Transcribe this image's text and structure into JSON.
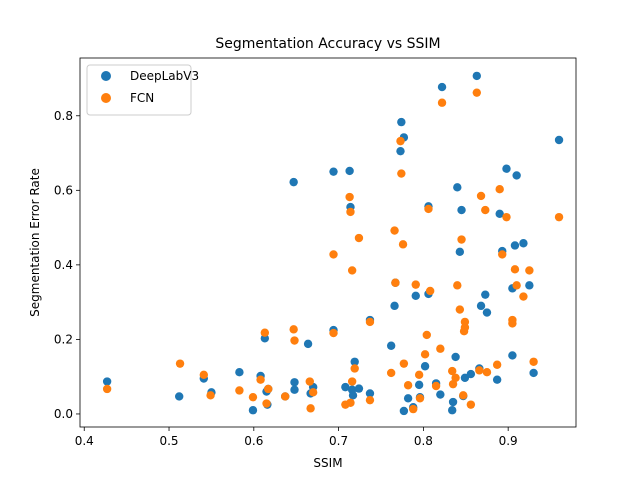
{
  "chart_data": {
    "type": "scatter",
    "title": "Segmentation Accuracy vs SSIM",
    "xlabel": "SSIM",
    "ylabel": "Segmentation Error Rate",
    "xlim": [
      0.395,
      0.98
    ],
    "ylim": [
      -0.035,
      0.955
    ],
    "xticks": [
      0.4,
      0.5,
      0.6,
      0.7,
      0.8,
      0.9
    ],
    "xtick_labels": [
      "0.4",
      "0.5",
      "0.6",
      "0.7",
      "0.8",
      "0.9"
    ],
    "yticks": [
      0.0,
      0.2,
      0.4,
      0.6,
      0.8
    ],
    "ytick_labels": [
      "0.0",
      "0.2",
      "0.4",
      "0.6",
      "0.8"
    ],
    "grid": false,
    "legend_position": "top-left",
    "series": [
      {
        "name": "DeepLabV3",
        "color": "#1f77b4",
        "points": [
          [
            0.427,
            0.087
          ],
          [
            0.512,
            0.047
          ],
          [
            0.541,
            0.095
          ],
          [
            0.55,
            0.058
          ],
          [
            0.583,
            0.112
          ],
          [
            0.599,
            0.01
          ],
          [
            0.608,
            0.102
          ],
          [
            0.613,
            0.203
          ],
          [
            0.615,
            0.06
          ],
          [
            0.617,
            0.067
          ],
          [
            0.616,
            0.025
          ],
          [
            0.637,
            0.047
          ],
          [
            0.647,
            0.622
          ],
          [
            0.648,
            0.085
          ],
          [
            0.648,
            0.065
          ],
          [
            0.664,
            0.188
          ],
          [
            0.667,
            0.055
          ],
          [
            0.67,
            0.072
          ],
          [
            0.694,
            0.65
          ],
          [
            0.694,
            0.225
          ],
          [
            0.708,
            0.072
          ],
          [
            0.713,
            0.652
          ],
          [
            0.714,
            0.555
          ],
          [
            0.716,
            0.065
          ],
          [
            0.717,
            0.05
          ],
          [
            0.719,
            0.14
          ],
          [
            0.724,
            0.068
          ],
          [
            0.737,
            0.055
          ],
          [
            0.737,
            0.252
          ],
          [
            0.762,
            0.183
          ],
          [
            0.766,
            0.29
          ],
          [
            0.767,
            0.352
          ],
          [
            0.773,
            0.705
          ],
          [
            0.774,
            0.783
          ],
          [
            0.777,
            0.742
          ],
          [
            0.777,
            0.008
          ],
          [
            0.782,
            0.042
          ],
          [
            0.788,
            0.018
          ],
          [
            0.791,
            0.317
          ],
          [
            0.795,
            0.078
          ],
          [
            0.796,
            0.045
          ],
          [
            0.802,
            0.128
          ],
          [
            0.806,
            0.557
          ],
          [
            0.806,
            0.322
          ],
          [
            0.815,
            0.082
          ],
          [
            0.82,
            0.052
          ],
          [
            0.822,
            0.877
          ],
          [
            0.834,
            0.01
          ],
          [
            0.835,
            0.032
          ],
          [
            0.838,
            0.153
          ],
          [
            0.84,
            0.608
          ],
          [
            0.843,
            0.435
          ],
          [
            0.845,
            0.547
          ],
          [
            0.847,
            0.048
          ],
          [
            0.849,
            0.097
          ],
          [
            0.856,
            0.107
          ],
          [
            0.863,
            0.907
          ],
          [
            0.866,
            0.122
          ],
          [
            0.868,
            0.29
          ],
          [
            0.873,
            0.32
          ],
          [
            0.875,
            0.272
          ],
          [
            0.887,
            0.092
          ],
          [
            0.89,
            0.537
          ],
          [
            0.893,
            0.437
          ],
          [
            0.898,
            0.658
          ],
          [
            0.905,
            0.337
          ],
          [
            0.905,
            0.157
          ],
          [
            0.908,
            0.452
          ],
          [
            0.91,
            0.64
          ],
          [
            0.918,
            0.458
          ],
          [
            0.925,
            0.345
          ],
          [
            0.93,
            0.11
          ],
          [
            0.96,
            0.735
          ]
        ]
      },
      {
        "name": "FCN",
        "color": "#ff7f0e",
        "points": [
          [
            0.427,
            0.067
          ],
          [
            0.513,
            0.135
          ],
          [
            0.541,
            0.105
          ],
          [
            0.549,
            0.05
          ],
          [
            0.583,
            0.063
          ],
          [
            0.599,
            0.045
          ],
          [
            0.608,
            0.092
          ],
          [
            0.613,
            0.218
          ],
          [
            0.615,
            0.028
          ],
          [
            0.617,
            0.067
          ],
          [
            0.637,
            0.047
          ],
          [
            0.647,
            0.227
          ],
          [
            0.648,
            0.197
          ],
          [
            0.666,
            0.087
          ],
          [
            0.667,
            0.015
          ],
          [
            0.67,
            0.058
          ],
          [
            0.694,
            0.428
          ],
          [
            0.694,
            0.217
          ],
          [
            0.708,
            0.025
          ],
          [
            0.713,
            0.582
          ],
          [
            0.714,
            0.542
          ],
          [
            0.716,
            0.385
          ],
          [
            0.716,
            0.087
          ],
          [
            0.714,
            0.03
          ],
          [
            0.719,
            0.122
          ],
          [
            0.724,
            0.472
          ],
          [
            0.737,
            0.247
          ],
          [
            0.737,
            0.037
          ],
          [
            0.762,
            0.11
          ],
          [
            0.766,
            0.492
          ],
          [
            0.767,
            0.352
          ],
          [
            0.773,
            0.732
          ],
          [
            0.774,
            0.645
          ],
          [
            0.777,
            0.135
          ],
          [
            0.776,
            0.455
          ],
          [
            0.782,
            0.077
          ],
          [
            0.788,
            0.013
          ],
          [
            0.791,
            0.347
          ],
          [
            0.795,
            0.105
          ],
          [
            0.796,
            0.042
          ],
          [
            0.802,
            0.16
          ],
          [
            0.804,
            0.212
          ],
          [
            0.806,
            0.55
          ],
          [
            0.808,
            0.33
          ],
          [
            0.815,
            0.075
          ],
          [
            0.82,
            0.175
          ],
          [
            0.822,
            0.835
          ],
          [
            0.834,
            0.115
          ],
          [
            0.835,
            0.08
          ],
          [
            0.838,
            0.097
          ],
          [
            0.84,
            0.345
          ],
          [
            0.843,
            0.28
          ],
          [
            0.845,
            0.468
          ],
          [
            0.847,
            0.05
          ],
          [
            0.848,
            0.222
          ],
          [
            0.849,
            0.232
          ],
          [
            0.849,
            0.247
          ],
          [
            0.856,
            0.025
          ],
          [
            0.863,
            0.862
          ],
          [
            0.866,
            0.117
          ],
          [
            0.868,
            0.585
          ],
          [
            0.873,
            0.547
          ],
          [
            0.875,
            0.112
          ],
          [
            0.887,
            0.132
          ],
          [
            0.89,
            0.603
          ],
          [
            0.893,
            0.428
          ],
          [
            0.898,
            0.528
          ],
          [
            0.905,
            0.252
          ],
          [
            0.905,
            0.243
          ],
          [
            0.908,
            0.388
          ],
          [
            0.91,
            0.345
          ],
          [
            0.918,
            0.315
          ],
          [
            0.925,
            0.385
          ],
          [
            0.93,
            0.14
          ],
          [
            0.96,
            0.528
          ]
        ]
      }
    ]
  }
}
